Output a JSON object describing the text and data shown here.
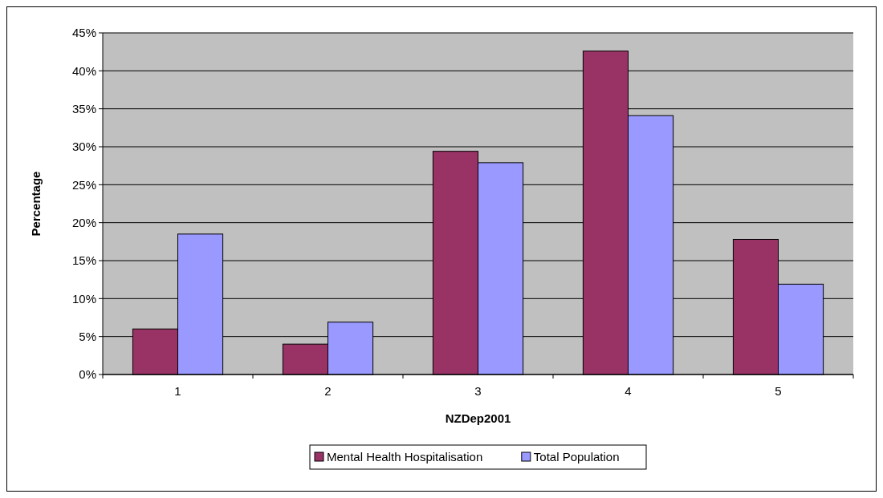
{
  "chart_data": {
    "type": "bar",
    "xlabel": "NZDep2001",
    "ylabel": "Percentage",
    "categories": [
      "1",
      "2",
      "3",
      "4",
      "5"
    ],
    "series": [
      {
        "name": "Mental Health Hospitalisation",
        "color": "#993366",
        "values": [
          6.0,
          4.0,
          29.4,
          42.6,
          17.8
        ]
      },
      {
        "name": "Total Population",
        "color": "#9999ff",
        "values": [
          18.5,
          6.9,
          27.9,
          34.1,
          11.9
        ]
      }
    ],
    "ylim": [
      0,
      45
    ],
    "yticks": [
      {
        "value": 0,
        "label": "0%"
      },
      {
        "value": 5,
        "label": "5%"
      },
      {
        "value": 10,
        "label": "10%"
      },
      {
        "value": 15,
        "label": "15%"
      },
      {
        "value": 20,
        "label": "20%"
      },
      {
        "value": 25,
        "label": "25%"
      },
      {
        "value": 30,
        "label": "30%"
      },
      {
        "value": 35,
        "label": "35%"
      },
      {
        "value": 40,
        "label": "40%"
      },
      {
        "value": 45,
        "label": "45%"
      }
    ],
    "grid": "y",
    "legend": "bottom"
  }
}
